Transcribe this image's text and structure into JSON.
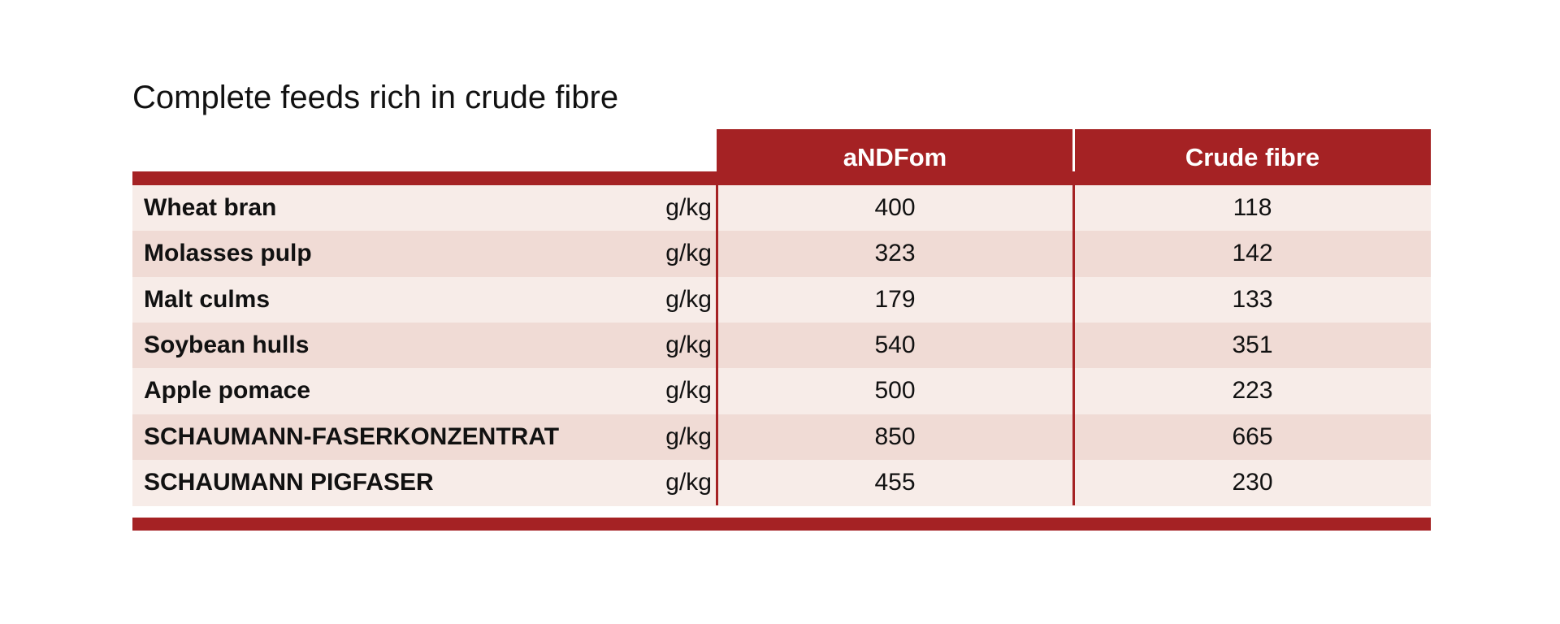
{
  "title": "Complete feeds rich in crude fibre",
  "table": {
    "headers": [
      "aNDFom",
      "Crude fibre"
    ],
    "rows": [
      [
        "Wheat bran",
        "g/kg",
        400,
        118
      ],
      [
        "Molasses pulp",
        "g/kg",
        323,
        142
      ],
      [
        "Malt culms",
        "g/kg",
        179,
        133
      ],
      [
        "Soybean hulls",
        "g/kg",
        540,
        351
      ],
      [
        "Apple pomace",
        "g/kg",
        500,
        223
      ],
      [
        "SCHAUMANN-FASERKONZENTRAT",
        "g/kg",
        850,
        665
      ],
      [
        "SCHAUMANN PIGFASER",
        "g/kg",
        455,
        230
      ]
    ]
  }
}
